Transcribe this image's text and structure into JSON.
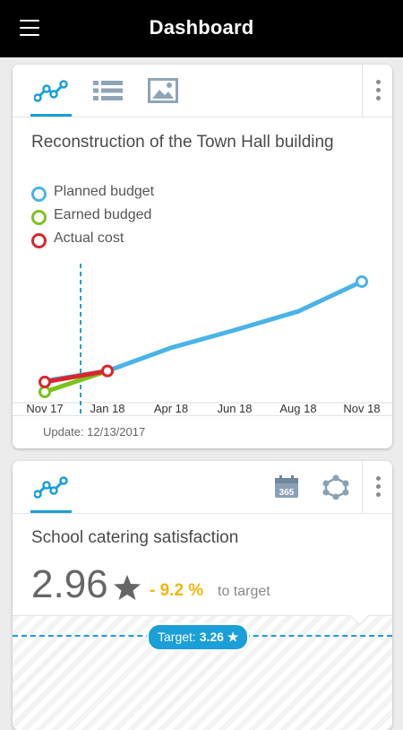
{
  "header": {
    "title": "Dashboard"
  },
  "colors": {
    "accent": "#1a9fd8",
    "planned": "#4ab3e8",
    "earned": "#7cc21b",
    "actual": "#d9262c",
    "delta": "#f5b50a"
  },
  "card1": {
    "tabs": [
      {
        "icon": "line-chart-icon",
        "active": true
      },
      {
        "icon": "list-icon",
        "active": false
      },
      {
        "icon": "image-icon",
        "active": false
      }
    ],
    "title": "Reconstruction of the Town Hall building",
    "legend": [
      {
        "label": "Planned budget",
        "color": "#4ab3e8"
      },
      {
        "label": "Earned budged",
        "color": "#7cc21b"
      },
      {
        "label": "Actual cost",
        "color": "#d9262c"
      }
    ],
    "update": "Update: 12/13/2017"
  },
  "chart_data": {
    "type": "line",
    "x_ticks": [
      "Nov 17",
      "Jan 18",
      "Apr 18",
      "Jun 18",
      "Aug 18",
      "Nov 18"
    ],
    "today_marker": "Dec 17",
    "series": [
      {
        "name": "Planned budget",
        "color": "#4ab3e8",
        "points": [
          {
            "x": "Nov 17",
            "y": 10
          },
          {
            "x": "Jan 18",
            "y": 19
          },
          {
            "x": "Apr 18",
            "y": 40
          },
          {
            "x": "Jun 18",
            "y": 56
          },
          {
            "x": "Aug 18",
            "y": 73
          },
          {
            "x": "Nov 18",
            "y": 100
          }
        ]
      },
      {
        "name": "Earned budged",
        "color": "#7cc21b",
        "points": [
          {
            "x": "Nov 17",
            "y": 0
          },
          {
            "x": "Jan 18",
            "y": 19
          }
        ]
      },
      {
        "name": "Actual cost",
        "color": "#d9262c",
        "points": [
          {
            "x": "Nov 17",
            "y": 9
          },
          {
            "x": "Jan 18",
            "y": 19
          }
        ]
      }
    ],
    "grid": false,
    "legend": "top-left"
  },
  "card2": {
    "tabs": [
      {
        "icon": "line-chart-icon",
        "active": true
      }
    ],
    "calendar_label": "365",
    "title": "School catering satisfaction",
    "value": "2.96",
    "delta": "- 9.2 %",
    "delta_suffix": "to target",
    "target_label": "Target:",
    "target_value": "3.26 ★"
  }
}
